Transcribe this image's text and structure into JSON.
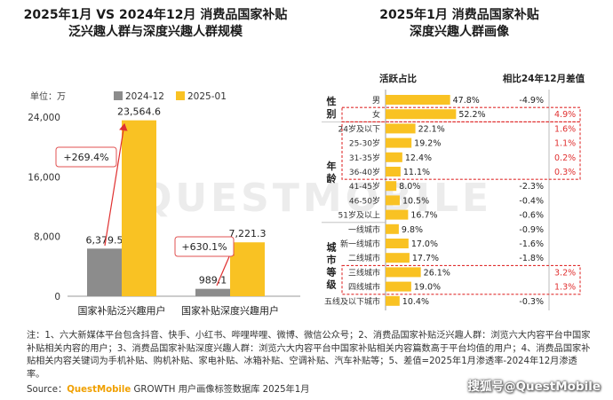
{
  "left": {
    "title_line1": "2025年1月 VS 2024年12月 消费品国家补贴",
    "title_line2": "泛兴趣人群与深度兴趣人群规模"
  },
  "right": {
    "title_line1": "2025年1月 消费品国家补贴",
    "title_line2": "深度兴趣人群画像"
  },
  "chart_data": [
    {
      "type": "bar",
      "unit_label": "单位：万",
      "categories": [
        "国家补贴泛兴趣用户",
        "国家补贴深度兴趣用户"
      ],
      "series": [
        {
          "name": "2024-12",
          "values": [
            6379.5,
            989.1
          ],
          "color": "#8c8c8c"
        },
        {
          "name": "2025-01",
          "values": [
            23564.6,
            7221.3
          ],
          "color": "#f9c223"
        }
      ],
      "value_labels": [
        [
          "6,379.5",
          "23,564.6"
        ],
        [
          "989.1",
          "7,221.3"
        ]
      ],
      "y_ticks": [
        "0",
        "8,000",
        "16,000",
        "24,000"
      ],
      "ylim": [
        0,
        24000
      ],
      "annotations": [
        "+269.4%",
        "+630.1%"
      ]
    },
    {
      "type": "bar",
      "column_headers": [
        "活跃占比",
        "相比24年12月差值"
      ],
      "groups": [
        {
          "label": "性别",
          "label_chars": [
            "性",
            "别"
          ],
          "start": 0,
          "end": 1
        },
        {
          "label": "年龄",
          "label_chars": [
            "年",
            "龄"
          ],
          "start": 2,
          "end": 8
        },
        {
          "label": "城市等级",
          "label_chars": [
            "城",
            "市",
            "等",
            "级"
          ],
          "start": 9,
          "end": 14
        }
      ],
      "rows": [
        {
          "label": "男",
          "value": 47.8,
          "value_label": "47.8%",
          "diff": "-4.9%",
          "highlight": false
        },
        {
          "label": "女",
          "value": 52.2,
          "value_label": "52.2%",
          "diff": "4.9%",
          "highlight": true
        },
        {
          "label": "24岁及以下",
          "value": 22.1,
          "value_label": "22.1%",
          "diff": "1.6%",
          "highlight": true
        },
        {
          "label": "25-30岁",
          "value": 19.2,
          "value_label": "19.2%",
          "diff": "1.1%",
          "highlight": true
        },
        {
          "label": "31-35岁",
          "value": 12.4,
          "value_label": "12.4%",
          "diff": "0.2%",
          "highlight": true
        },
        {
          "label": "36-40岁",
          "value": 11.1,
          "value_label": "11.1%",
          "diff": "0.3%",
          "highlight": true
        },
        {
          "label": "41-45岁",
          "value": 8.0,
          "value_label": "8.0%",
          "diff": "-2.3%",
          "highlight": false
        },
        {
          "label": "46-50岁",
          "value": 10.5,
          "value_label": "10.5%",
          "diff": "-0.4%",
          "highlight": false
        },
        {
          "label": "51岁及以上",
          "value": 16.7,
          "value_label": "16.7%",
          "diff": "-0.6%",
          "highlight": false
        },
        {
          "label": "一线城市",
          "value": 9.8,
          "value_label": "9.8%",
          "diff": "-0.9%",
          "highlight": false
        },
        {
          "label": "新一线城市",
          "value": 17.0,
          "value_label": "17.0%",
          "diff": "-1.6%",
          "highlight": false
        },
        {
          "label": "二线城市",
          "value": 17.7,
          "value_label": "17.7%",
          "diff": "-1.8%",
          "highlight": false
        },
        {
          "label": "三线城市",
          "value": 26.1,
          "value_label": "26.1%",
          "diff": "3.2%",
          "highlight": true
        },
        {
          "label": "四线城市",
          "value": 19.0,
          "value_label": "19.0%",
          "diff": "1.3%",
          "highlight": true
        },
        {
          "label": "五线及以下城市",
          "value": 10.4,
          "value_label": "10.4%",
          "diff": "-0.3%",
          "highlight": false
        }
      ],
      "highlight_boxes": [
        [
          1,
          1
        ],
        [
          2,
          5
        ],
        [
          12,
          13
        ]
      ],
      "bar_color": "#f9c223",
      "highlight_color": "#e03030"
    }
  ],
  "watermark": "QUESTMOBILE",
  "notes": "注：1、六大新媒体平台包含抖音、快手、小红书、哔哩哔哩、微博、微信公众号；2、消费品国家补贴泛兴趣人群：浏览六大内容平台中国家补贴相关内容的用户；3、消费品国家补贴深度兴趣人群：浏览六大内容平台中国家补贴相关内容篇数高于平台均值的用户；4、消费品国家补贴相关内容关键词为手机补贴、购机补贴、家电补贴、冰箱补贴、空调补贴、汽车补贴等；5、差值=2025年1月渗透率-2024年12月渗透率。",
  "source": {
    "prefix": "Source：",
    "brand": "QuestMobile",
    "rest": " GROWTH 用户画像标签数据库 2025年1月"
  },
  "credit": "搜狐号@QuestMobile"
}
